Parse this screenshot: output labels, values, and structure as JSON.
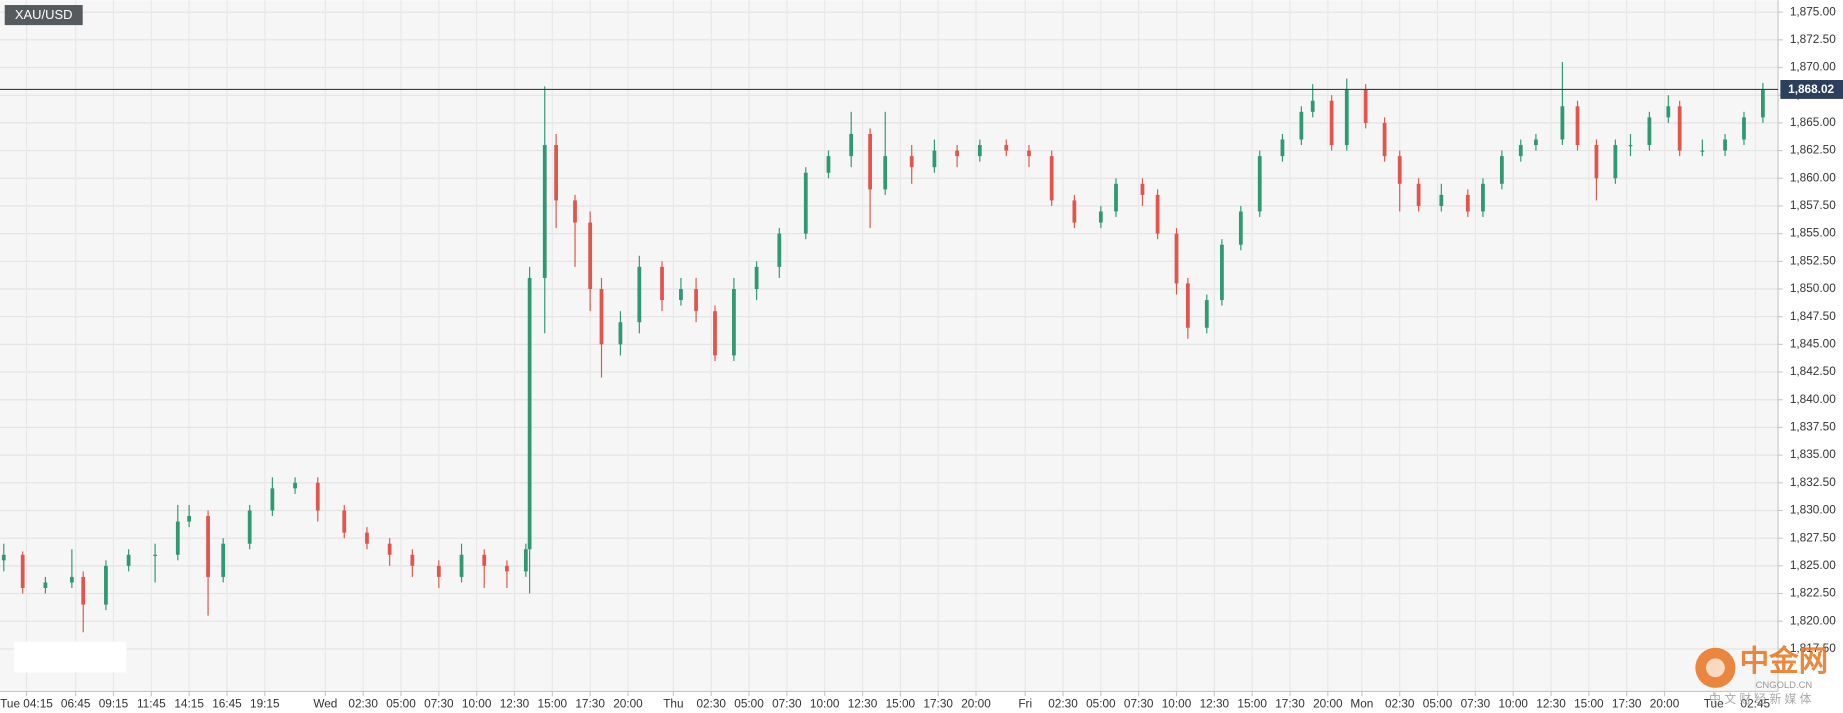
{
  "chart_data": {
    "type": "candlestick",
    "title": "XAU/USD",
    "up_color": "#2f9a72",
    "down_color": "#e0564b",
    "grid": true,
    "xlim": [
      0,
      470
    ],
    "ylim": [
      1813.66,
      1876.07
    ],
    "xticks": [
      {
        "value": 7,
        "label": "Tue 04:15"
      },
      {
        "value": 20,
        "label": "06:45"
      },
      {
        "value": 30,
        "label": "09:15"
      },
      {
        "value": 40,
        "label": "11:45"
      },
      {
        "value": 50,
        "label": "14:15"
      },
      {
        "value": 60,
        "label": "16:45"
      },
      {
        "value": 70,
        "label": "19:15"
      },
      {
        "value": 86,
        "label": "Wed"
      },
      {
        "value": 96,
        "label": "02:30"
      },
      {
        "value": 106,
        "label": "05:00"
      },
      {
        "value": 116,
        "label": "07:30"
      },
      {
        "value": 126,
        "label": "10:00"
      },
      {
        "value": 136,
        "label": "12:30"
      },
      {
        "value": 146,
        "label": "15:00"
      },
      {
        "value": 156,
        "label": "17:30"
      },
      {
        "value": 166,
        "label": "20:00"
      },
      {
        "value": 178,
        "label": "Thu"
      },
      {
        "value": 188,
        "label": "02:30"
      },
      {
        "value": 198,
        "label": "05:00"
      },
      {
        "value": 208,
        "label": "07:30"
      },
      {
        "value": 218,
        "label": "10:00"
      },
      {
        "value": 228,
        "label": "12:30"
      },
      {
        "value": 238,
        "label": "15:00"
      },
      {
        "value": 248,
        "label": "17:30"
      },
      {
        "value": 258,
        "label": "20:00"
      },
      {
        "value": 271,
        "label": "Fri"
      },
      {
        "value": 281,
        "label": "02:30"
      },
      {
        "value": 291,
        "label": "05:00"
      },
      {
        "value": 301,
        "label": "07:30"
      },
      {
        "value": 311,
        "label": "10:00"
      },
      {
        "value": 321,
        "label": "12:30"
      },
      {
        "value": 331,
        "label": "15:00"
      },
      {
        "value": 341,
        "label": "17:30"
      },
      {
        "value": 351,
        "label": "20:00"
      },
      {
        "value": 360,
        "label": "Mon"
      },
      {
        "value": 370,
        "label": "02:30"
      },
      {
        "value": 380,
        "label": "05:00"
      },
      {
        "value": 390,
        "label": "07:30"
      },
      {
        "value": 400,
        "label": "10:00"
      },
      {
        "value": 410,
        "label": "12:30"
      },
      {
        "value": 420,
        "label": "15:00"
      },
      {
        "value": 430,
        "label": "17:30"
      },
      {
        "value": 440,
        "label": "20:00"
      },
      {
        "value": 453,
        "label": "Tue"
      },
      {
        "value": 464,
        "label": "02:45"
      }
    ],
    "yticks": [
      {
        "value": 1817.5,
        "label": "1,817.50"
      },
      {
        "value": 1820,
        "label": "1,820.00"
      },
      {
        "value": 1822.5,
        "label": "1,822.50"
      },
      {
        "value": 1825,
        "label": "1,825.00"
      },
      {
        "value": 1827.5,
        "label": "1,827.50"
      },
      {
        "value": 1830,
        "label": "1,830.00"
      },
      {
        "value": 1832.5,
        "label": "1,832.50"
      },
      {
        "value": 1835,
        "label": "1,835.00"
      },
      {
        "value": 1837.5,
        "label": "1,837.50"
      },
      {
        "value": 1840,
        "label": "1,840.00"
      },
      {
        "value": 1842.5,
        "label": "1,842.50"
      },
      {
        "value": 1845,
        "label": "1,845.00"
      },
      {
        "value": 1847.5,
        "label": "1,847.50"
      },
      {
        "value": 1850,
        "label": "1,850.00"
      },
      {
        "value": 1852.5,
        "label": "1,852.50"
      },
      {
        "value": 1855,
        "label": "1,855.00"
      },
      {
        "value": 1857.5,
        "label": "1,857.50"
      },
      {
        "value": 1860,
        "label": "1,860.00"
      },
      {
        "value": 1862.5,
        "label": "1,862.50"
      },
      {
        "value": 1865,
        "label": "1,865.00"
      },
      {
        "value": 1867.5,
        "label": "1,867.50"
      },
      {
        "value": 1870,
        "label": "1,870.00"
      },
      {
        "value": 1872.5,
        "label": "1,872.50"
      },
      {
        "value": 1875,
        "label": "1,875.00"
      }
    ],
    "last_price": {
      "value": 1868.02,
      "label": "1,868.02",
      "color": "#2b3f5e"
    },
    "x": [
      1,
      6,
      12,
      19,
      22,
      28,
      34,
      41,
      47,
      50,
      55,
      59,
      66,
      72,
      78,
      84,
      91,
      97,
      103,
      109,
      116,
      122,
      128,
      134,
      139,
      140,
      144,
      147,
      152,
      156,
      159,
      164,
      169,
      175,
      180,
      184,
      189,
      194,
      200,
      206,
      213,
      219,
      225,
      230,
      234,
      241,
      247,
      253,
      259,
      266,
      272,
      278,
      284,
      291,
      295,
      302,
      306,
      311,
      314,
      319,
      323,
      328,
      333,
      339,
      344,
      347,
      352,
      356,
      361,
      366,
      370,
      375,
      381,
      388,
      392,
      397,
      402,
      406,
      413,
      417,
      422,
      427,
      431,
      436,
      441,
      444,
      450,
      456,
      461,
      466
    ],
    "open": [
      1825.5,
      1826,
      1823,
      1823.5,
      1824,
      1821.5,
      1825,
      1826,
      1826,
      1829,
      1829.5,
      1824,
      1827,
      1830,
      1832,
      1832.5,
      1830,
      1828,
      1827,
      1826,
      1825,
      1824,
      1826,
      1825,
      1824.5,
      1826.5,
      1851,
      1863,
      1858,
      1856,
      1850,
      1845,
      1847,
      1852,
      1849,
      1850,
      1848,
      1844,
      1850,
      1852,
      1855,
      1860.5,
      1862,
      1864,
      1859,
      1862,
      1861,
      1862.5,
      1862,
      1863,
      1862.5,
      1862,
      1858,
      1856,
      1857,
      1859.5,
      1858.5,
      1855,
      1850.5,
      1846.5,
      1849,
      1854,
      1857,
      1862,
      1863.5,
      1866,
      1867,
      1863,
      1868,
      1865,
      1862,
      1859.5,
      1857.5,
      1858.5,
      1857,
      1859.5,
      1862,
      1863,
      1863.5,
      1866.5,
      1863,
      1860,
      1863,
      1863,
      1865.5,
      1866.5,
      1862.5,
      1862.5,
      1863.5,
      1865.5
    ],
    "high": [
      1827,
      1826.3,
      1824,
      1826.5,
      1824.5,
      1825.5,
      1826.5,
      1827,
      1830.5,
      1830.5,
      1830,
      1827.5,
      1830.5,
      1833,
      1833,
      1833,
      1830.5,
      1828.5,
      1827.5,
      1826.5,
      1825.5,
      1827,
      1826.5,
      1825.5,
      1827,
      1852,
      1868.3,
      1864,
      1858.5,
      1857,
      1851,
      1848,
      1853,
      1852.5,
      1851,
      1851,
      1848.5,
      1851,
      1852.5,
      1855.5,
      1861,
      1862.5,
      1866,
      1864.5,
      1866,
      1863,
      1863.5,
      1863,
      1863.5,
      1863.5,
      1863,
      1862.5,
      1858.5,
      1857.5,
      1860,
      1860,
      1859,
      1855.5,
      1851,
      1849.5,
      1854.5,
      1857.5,
      1862.5,
      1864,
      1866.5,
      1868.5,
      1867.5,
      1869,
      1868.5,
      1865.5,
      1862.5,
      1860,
      1859.5,
      1859,
      1860,
      1862.5,
      1863.5,
      1864,
      1870.5,
      1867,
      1863.5,
      1863.5,
      1864,
      1866,
      1867.5,
      1867,
      1863.5,
      1864,
      1866,
      1868.6
    ],
    "low": [
      1824.5,
      1822.5,
      1822.5,
      1823,
      1819,
      1821,
      1824.5,
      1823.5,
      1825.5,
      1828.5,
      1820.5,
      1823.5,
      1826.5,
      1829.5,
      1831.5,
      1829,
      1827.5,
      1826.5,
      1825,
      1824,
      1823,
      1823.5,
      1823,
      1823,
      1824,
      1822.5,
      1846,
      1855.5,
      1852,
      1848,
      1842,
      1844,
      1846,
      1848,
      1848.5,
      1847,
      1843.5,
      1843.5,
      1849,
      1851,
      1854.5,
      1860,
      1861,
      1855.5,
      1858.5,
      1859.5,
      1860.5,
      1861,
      1861.5,
      1862,
      1861,
      1857.5,
      1855.5,
      1855.5,
      1856.5,
      1857.5,
      1854.5,
      1849.5,
      1845.5,
      1846,
      1848.5,
      1853.5,
      1856.5,
      1861.5,
      1863,
      1865.5,
      1862.5,
      1862.5,
      1864.5,
      1861.5,
      1857,
      1857,
      1857,
      1856.5,
      1856.5,
      1859,
      1861.5,
      1862.5,
      1863,
      1862.5,
      1858,
      1859.5,
      1862,
      1862.5,
      1865,
      1862,
      1862,
      1862,
      1863,
      1865
    ],
    "close": [
      1826,
      1823,
      1823.5,
      1824,
      1821.5,
      1825,
      1826,
      1826,
      1829,
      1829.5,
      1824,
      1827,
      1830,
      1832,
      1832.5,
      1830,
      1828,
      1827,
      1826,
      1825,
      1824,
      1826,
      1825,
      1824.5,
      1826.5,
      1851,
      1863,
      1858,
      1856,
      1850,
      1845,
      1847,
      1852,
      1849,
      1850,
      1848,
      1844,
      1850,
      1852,
      1855,
      1860.5,
      1862,
      1864,
      1859,
      1862,
      1861,
      1862.5,
      1862,
      1863,
      1862.5,
      1862,
      1858,
      1856,
      1857,
      1859.5,
      1858.5,
      1855,
      1850.5,
      1846.5,
      1849,
      1854,
      1857,
      1862,
      1863.5,
      1866,
      1867,
      1863,
      1868,
      1865,
      1862,
      1859.5,
      1857.5,
      1858.5,
      1857,
      1859.5,
      1862,
      1863,
      1863.5,
      1866.5,
      1863,
      1860,
      1863,
      1863,
      1865.5,
      1866.5,
      1862.5,
      1862.5,
      1863.5,
      1865.5,
      1868
    ]
  },
  "watermark": {
    "logo": "中金网",
    "domain": "CNGOLD.CN",
    "tagline": "中 文 财 经 新 媒 体"
  }
}
